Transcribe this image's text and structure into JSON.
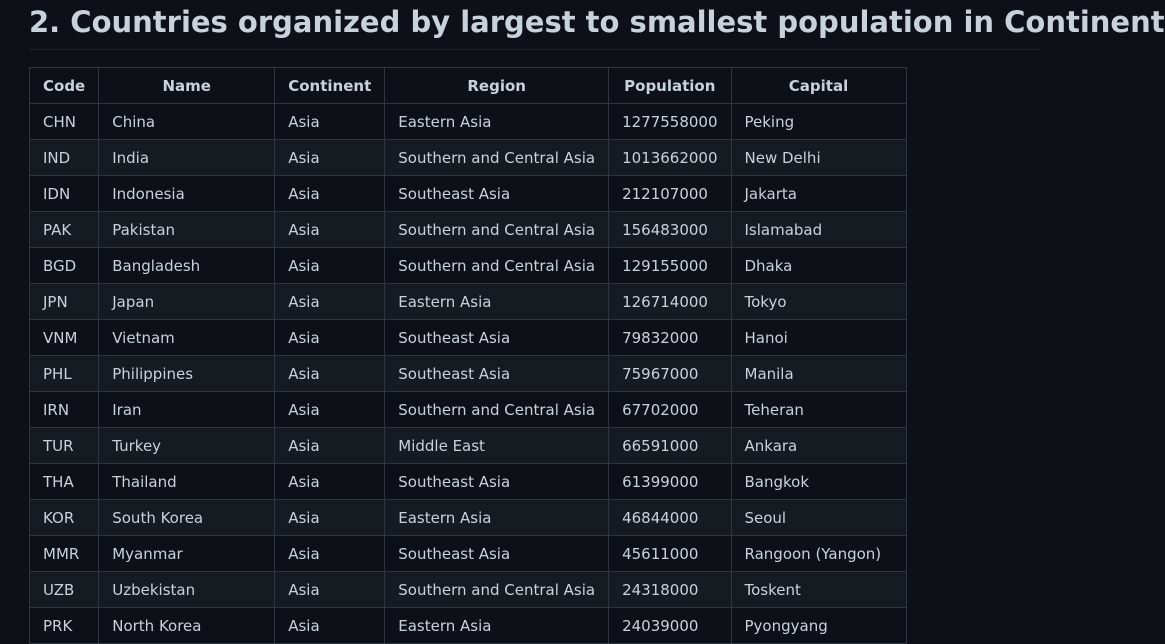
{
  "heading": "2. Countries organized by largest to smallest population in Continent",
  "table": {
    "columns": [
      "Code",
      "Name",
      "Continent",
      "Region",
      "Population",
      "Capital"
    ],
    "rows": [
      [
        "CHN",
        "China",
        "Asia",
        "Eastern Asia",
        "1277558000",
        "Peking"
      ],
      [
        "IND",
        "India",
        "Asia",
        "Southern and Central Asia",
        "1013662000",
        "New Delhi"
      ],
      [
        "IDN",
        "Indonesia",
        "Asia",
        "Southeast Asia",
        "212107000",
        "Jakarta"
      ],
      [
        "PAK",
        "Pakistan",
        "Asia",
        "Southern and Central Asia",
        "156483000",
        "Islamabad"
      ],
      [
        "BGD",
        "Bangladesh",
        "Asia",
        "Southern and Central Asia",
        "129155000",
        "Dhaka"
      ],
      [
        "JPN",
        "Japan",
        "Asia",
        "Eastern Asia",
        "126714000",
        "Tokyo"
      ],
      [
        "VNM",
        "Vietnam",
        "Asia",
        "Southeast Asia",
        "79832000",
        "Hanoi"
      ],
      [
        "PHL",
        "Philippines",
        "Asia",
        "Southeast Asia",
        "75967000",
        "Manila"
      ],
      [
        "IRN",
        "Iran",
        "Asia",
        "Southern and Central Asia",
        "67702000",
        "Teheran"
      ],
      [
        "TUR",
        "Turkey",
        "Asia",
        "Middle East",
        "66591000",
        "Ankara"
      ],
      [
        "THA",
        "Thailand",
        "Asia",
        "Southeast Asia",
        "61399000",
        "Bangkok"
      ],
      [
        "KOR",
        "South Korea",
        "Asia",
        "Eastern Asia",
        "46844000",
        "Seoul"
      ],
      [
        "MMR",
        "Myanmar",
        "Asia",
        "Southeast Asia",
        "45611000",
        "Rangoon (Yangon)"
      ],
      [
        "UZB",
        "Uzbekistan",
        "Asia",
        "Southern and Central Asia",
        "24318000",
        "Toskent"
      ],
      [
        "PRK",
        "North Korea",
        "Asia",
        "Eastern Asia",
        "24039000",
        "Pyongyang"
      ]
    ]
  }
}
